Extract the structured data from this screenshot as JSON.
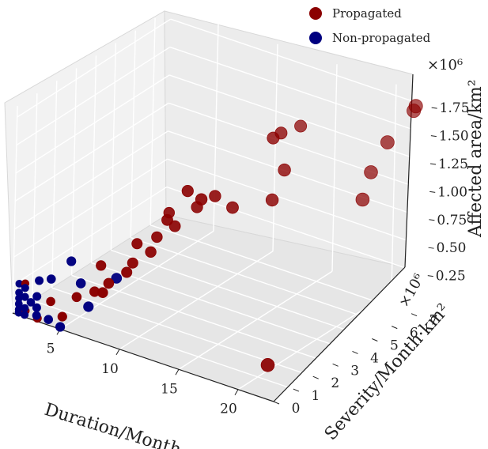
{
  "chart_data": {
    "type": "scatter3d",
    "xlabel": "Duration/Month",
    "ylabel": "Severity/Month·km²",
    "zlabel": "Affected area/km²",
    "y_multiplier": "×10⁶",
    "z_multiplier": "×10⁶",
    "x_ticks": [
      "5",
      "10",
      "15",
      "20"
    ],
    "y_ticks": [
      "0",
      "1",
      "2",
      "3",
      "4",
      "5",
      "6",
      "7"
    ],
    "z_ticks": [
      "0.25",
      "0.50",
      "0.75",
      "1.00",
      "1.25",
      "1.50",
      "1.75"
    ],
    "xlim": [
      1,
      23
    ],
    "ylim": [
      0,
      7.8
    ],
    "zlim": [
      0,
      1.85
    ],
    "legend_position": "top-right",
    "grid": true,
    "series": [
      {
        "name": "Propagated",
        "color": "#8b0000",
        "points": [
          {
            "x": 8,
            "y": 0.3,
            "z": 0.4
          },
          {
            "x": 8,
            "y": 0.6,
            "z": 0.45
          },
          {
            "x": 9,
            "y": 0.9,
            "z": 0.55
          },
          {
            "x": 9,
            "y": 1.2,
            "z": 0.6
          },
          {
            "x": 10,
            "y": 1.5,
            "z": 0.7
          },
          {
            "x": 10,
            "y": 1.8,
            "z": 0.8
          },
          {
            "x": 11,
            "y": 2.1,
            "z": 0.9
          },
          {
            "x": 12,
            "y": 2.6,
            "z": 1.05
          },
          {
            "x": 6,
            "y": 0.2,
            "z": 0.3
          },
          {
            "x": 7,
            "y": 0.5,
            "z": 0.35
          },
          {
            "x": 9,
            "y": 1.4,
            "z": 0.75
          },
          {
            "x": 11,
            "y": 1.7,
            "z": 1.0
          },
          {
            "x": 13,
            "y": 2.9,
            "z": 1.15
          },
          {
            "x": 14,
            "y": 3.2,
            "z": 1.05
          },
          {
            "x": 12,
            "y": 2.1,
            "z": 1.25
          },
          {
            "x": 7,
            "y": 0.8,
            "z": 0.55
          },
          {
            "x": 10,
            "y": 2.4,
            "z": 0.95
          },
          {
            "x": 13,
            "y": 2.2,
            "z": 1.2
          },
          {
            "x": 16,
            "y": 4.0,
            "z": 1.1
          },
          {
            "x": 16,
            "y": 4.6,
            "z": 1.3
          },
          {
            "x": 15,
            "y": 4.6,
            "z": 1.55
          },
          {
            "x": 15,
            "y": 5.0,
            "z": 1.55
          },
          {
            "x": 15,
            "y": 6.0,
            "z": 1.5
          },
          {
            "x": 20,
            "y": 6.2,
            "z": 1.0
          },
          {
            "x": 20,
            "y": 6.6,
            "z": 1.2
          },
          {
            "x": 21,
            "y": 6.8,
            "z": 1.48
          },
          {
            "x": 22,
            "y": 7.6,
            "z": 1.75
          },
          {
            "x": 22,
            "y": 7.5,
            "z": 1.72
          },
          {
            "x": 20,
            "y": 1.5,
            "z": 0.05
          },
          {
            "x": 2,
            "y": 0.05,
            "z": 0.05
          },
          {
            "x": 3,
            "y": 0.05,
            "z": 0.02
          },
          {
            "x": 5,
            "y": 0.1,
            "z": 0.1
          },
          {
            "x": 4,
            "y": 0.1,
            "z": 0.2
          },
          {
            "x": 2,
            "y": 0.0,
            "z": 0.3
          }
        ]
      },
      {
        "name": "Non-propagated",
        "color": "#000080",
        "points": [
          {
            "x": 1.5,
            "y": 0.0,
            "z": 0.02
          },
          {
            "x": 1.5,
            "y": 0.0,
            "z": 0.05
          },
          {
            "x": 1.5,
            "y": 0.0,
            "z": 0.1
          },
          {
            "x": 1.5,
            "y": 0.0,
            "z": 0.15
          },
          {
            "x": 1.5,
            "y": 0.0,
            "z": 0.2
          },
          {
            "x": 1.5,
            "y": 0.0,
            "z": 0.28
          },
          {
            "x": 2,
            "y": 0.0,
            "z": 0.02
          },
          {
            "x": 2,
            "y": 0.0,
            "z": 0.08
          },
          {
            "x": 2,
            "y": 0.0,
            "z": 0.18
          },
          {
            "x": 2,
            "y": 0.0,
            "z": 0.26
          },
          {
            "x": 3,
            "y": 0.0,
            "z": 0.05
          },
          {
            "x": 3,
            "y": 0.0,
            "z": 0.12
          },
          {
            "x": 3,
            "y": 0.0,
            "z": 0.22
          },
          {
            "x": 3,
            "y": 0.1,
            "z": 0.35
          },
          {
            "x": 4,
            "y": 0.0,
            "z": 0.05
          },
          {
            "x": 4,
            "y": 0.1,
            "z": 0.4
          },
          {
            "x": 2.5,
            "y": 0.0,
            "z": 0.15
          },
          {
            "x": 5,
            "y": 0.5,
            "z": 0.55
          },
          {
            "x": 6,
            "y": 0.4,
            "z": 0.4
          },
          {
            "x": 8,
            "y": 1.0,
            "z": 0.45
          },
          {
            "x": 7,
            "y": 0.2,
            "z": 0.25
          },
          {
            "x": 5,
            "y": 0.0,
            "z": 0.02
          }
        ]
      }
    ]
  }
}
